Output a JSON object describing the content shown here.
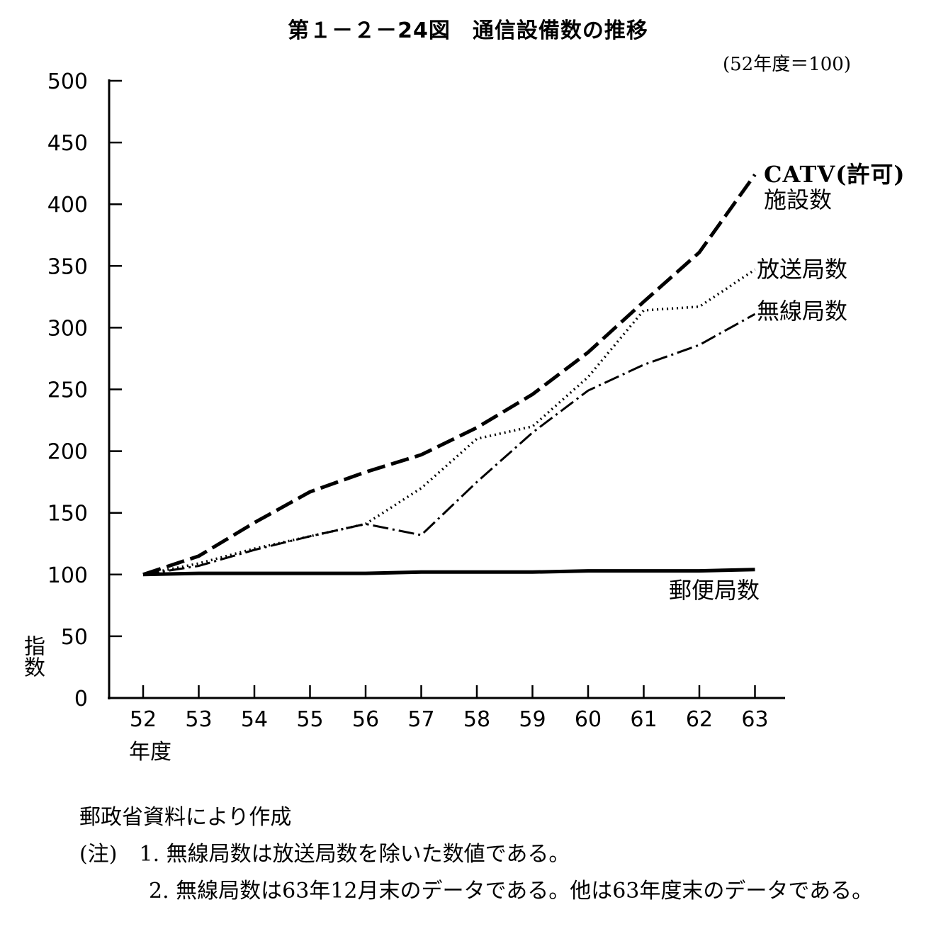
{
  "chart_data": {
    "type": "line",
    "title": "第１－２－24図　通信設備数の推移",
    "subtitle": "(52年度＝100)",
    "xlabel": "年度",
    "ylabel": "指数",
    "categories": [
      "52",
      "53",
      "54",
      "55",
      "56",
      "57",
      "58",
      "59",
      "60",
      "61",
      "62",
      "63"
    ],
    "ylim": [
      0,
      500
    ],
    "yticks": [
      "0",
      "50",
      "100",
      "150",
      "200",
      "250",
      "300",
      "350",
      "400",
      "450",
      "500"
    ],
    "grid": false,
    "series": [
      {
        "name": "CATV(許可)",
        "name2": "施設数",
        "style": "dashed",
        "values": [
          100,
          115,
          142,
          167,
          183,
          197,
          219,
          246,
          280,
          321,
          361,
          424
        ]
      },
      {
        "name": "放送局数",
        "style": "dotted",
        "values": [
          100,
          109,
          121,
          131,
          141,
          170,
          210,
          220,
          260,
          314,
          317,
          347
        ]
      },
      {
        "name": "無線局数",
        "style": "dashdot",
        "values": [
          100,
          107,
          120,
          131,
          141,
          132,
          175,
          215,
          249,
          270,
          286,
          311
        ]
      },
      {
        "name": "郵便局数",
        "style": "solid",
        "values": [
          100,
          101,
          101,
          101,
          101,
          102,
          102,
          102,
          103,
          103,
          103,
          104
        ]
      }
    ]
  },
  "source": "郵政省資料により作成",
  "notes": {
    "prefix": "(注)",
    "n1_num": "1.",
    "n1": "無線局数は放送局数を除いた数値である。",
    "n2_num": "2.",
    "n2": "無線局数は63年12月末のデータである。他は63年度末のデータである。"
  }
}
